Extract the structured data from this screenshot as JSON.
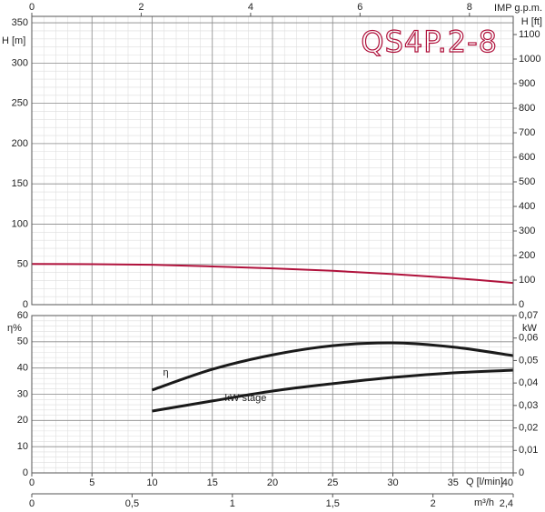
{
  "chart_data": [
    {
      "type": "line",
      "title": "QS4P.2-8",
      "ylabel": "H [m]",
      "y2label": "H [ft]",
      "x2label": "IMP g.p.m.",
      "x": [
        0,
        5,
        10,
        15,
        20,
        25,
        30,
        35,
        40
      ],
      "values": [
        50.5,
        50.3,
        49.5,
        47.5,
        45,
        42,
        38,
        33,
        27
      ],
      "color": "#b0123c",
      "xlim": [
        0,
        40
      ],
      "ylim": [
        0,
        358
      ],
      "yticks": [
        0,
        50,
        100,
        150,
        200,
        250,
        300,
        350
      ],
      "y2lim": [
        0,
        1174
      ],
      "y2ticks": [
        0,
        100,
        200,
        300,
        400,
        500,
        600,
        700,
        800,
        900,
        1000,
        1100
      ],
      "x2lim": [
        0,
        8.8
      ],
      "x2ticks": [
        0,
        2,
        4,
        6,
        8
      ],
      "grid": true
    },
    {
      "type": "line",
      "xlabel": "Q [l/min]",
      "ylabel": "η%",
      "y2label": "kW",
      "x2label": "m³/h",
      "x": [
        10,
        15,
        20,
        25,
        30,
        35,
        40
      ],
      "series": [
        {
          "name": "η",
          "color": "#1a1a1a",
          "values": [
            31.6,
            39.5,
            45,
            48.5,
            49.6,
            48,
            44.7
          ]
        },
        {
          "name": "kW stage",
          "color": "#1a1a1a",
          "axis": "y2",
          "values": [
            0.0275,
            0.032,
            0.0364,
            0.0397,
            0.0425,
            0.0445,
            0.0457
          ]
        }
      ],
      "xlim": [
        0,
        40
      ],
      "xticks": [
        0,
        5,
        10,
        15,
        20,
        25,
        30,
        35,
        40
      ],
      "ylim": [
        0,
        60
      ],
      "yticks": [
        0,
        10,
        20,
        30,
        40,
        50,
        60
      ],
      "y2lim": [
        0,
        0.07
      ],
      "y2ticks": [
        0,
        {
          "value": 0.01,
          "label": "0,01"
        },
        {
          "value": 0.02,
          "label": "0,02"
        },
        {
          "value": 0.03,
          "label": "0,03"
        },
        {
          "value": 0.04,
          "label": "0,04"
        },
        {
          "value": 0.05,
          "label": "0,05"
        },
        {
          "value": 0.06,
          "label": "0,06"
        },
        {
          "value": 0.07,
          "label": "0,07"
        }
      ],
      "x2lim": [
        0,
        2.4
      ],
      "x2ticks": [
        0,
        {
          "value": 0.5,
          "label": "0,5"
        },
        1,
        {
          "value": 1.5,
          "label": "1,5"
        },
        2,
        {
          "value": 2.4,
          "label": "2,4"
        }
      ],
      "grid": true
    }
  ]
}
